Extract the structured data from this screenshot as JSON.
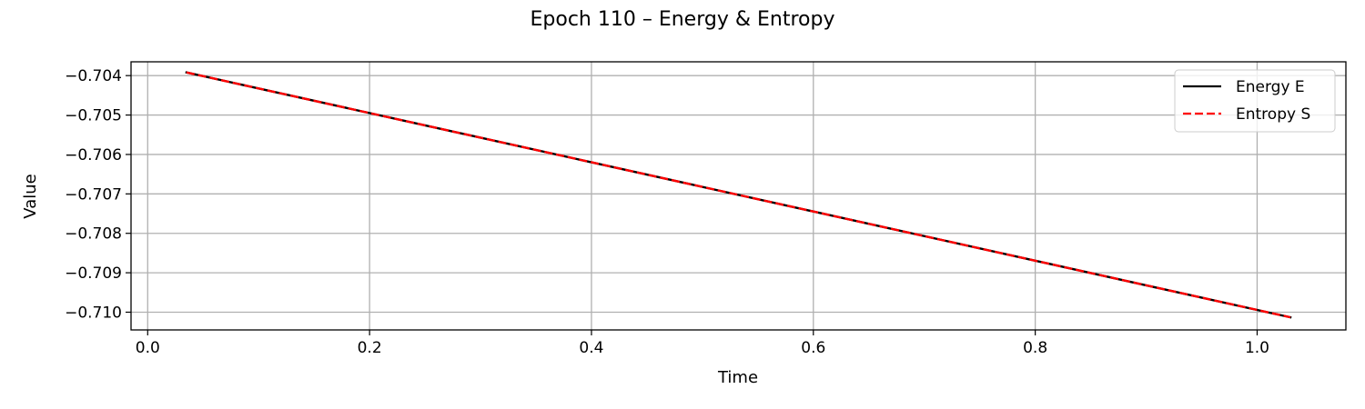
{
  "chart_data": {
    "type": "line",
    "title": "Epoch 110 – Energy & Entropy",
    "xlabel": "Time",
    "ylabel": "Value",
    "xlim": [
      -0.015,
      1.08
    ],
    "ylim": [
      -0.71045,
      -0.70365
    ],
    "x_ticks": [
      0.0,
      0.2,
      0.4,
      0.6,
      0.8,
      1.0
    ],
    "x_tick_labels": [
      "0.0",
      "0.2",
      "0.4",
      "0.6",
      "0.8",
      "1.0"
    ],
    "y_ticks": [
      -0.704,
      -0.705,
      -0.706,
      -0.707,
      -0.708,
      -0.709,
      -0.71
    ],
    "y_tick_labels": [
      "−0.704",
      "−0.705",
      "−0.706",
      "−0.707",
      "−0.708",
      "−0.709",
      "−0.710"
    ],
    "grid": true,
    "legend_position": "upper right",
    "series": [
      {
        "name": "Energy E",
        "color": "#000000",
        "line_style": "solid",
        "x": [
          0.035,
          1.03
        ],
        "y": [
          -0.70392,
          -0.71013
        ]
      },
      {
        "name": "Entropy S",
        "color": "#ff0000",
        "line_style": "dashed",
        "x": [
          0.035,
          1.03
        ],
        "y": [
          -0.70392,
          -0.71013
        ]
      }
    ]
  }
}
